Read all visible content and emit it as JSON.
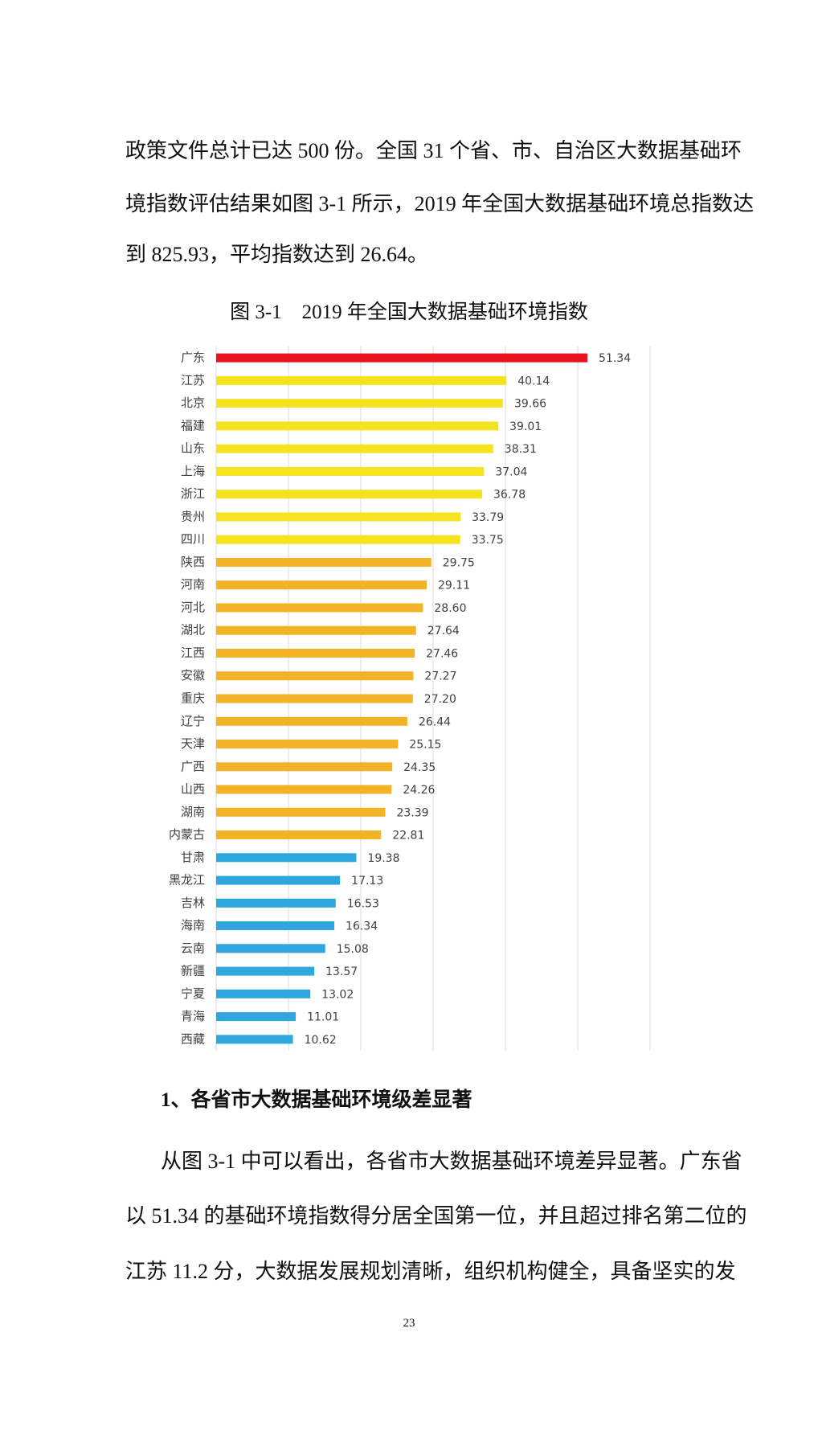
{
  "intro_lines": [
    "政策文件总计已达 500 份。全国 31 个省、市、自治区大数据基础环",
    "境指数评估结果如图 3-1 所示，2019 年全国大数据基础环境总指数达",
    "到 825.93，平均指数达到 26.64。"
  ],
  "chart_data": {
    "type": "hbar",
    "title": "图 3-1　2019 年全国大数据基础环境指数",
    "categories": [
      "广东",
      "江苏",
      "北京",
      "福建",
      "山东",
      "上海",
      "浙江",
      "贵州",
      "四川",
      "陕西",
      "河南",
      "河北",
      "湖北",
      "江西",
      "安徽",
      "重庆",
      "辽宁",
      "天津",
      "广西",
      "山西",
      "湖南",
      "内蒙古",
      "甘肃",
      "黑龙江",
      "吉林",
      "海南",
      "云南",
      "新疆",
      "宁夏",
      "青海",
      "西藏"
    ],
    "values": [
      51.34,
      40.14,
      39.66,
      39.01,
      38.31,
      37.04,
      36.78,
      33.79,
      33.75,
      29.75,
      29.11,
      28.6,
      27.64,
      27.46,
      27.27,
      27.2,
      26.44,
      25.15,
      24.35,
      24.26,
      23.39,
      22.81,
      19.38,
      17.13,
      16.53,
      16.34,
      15.08,
      13.57,
      13.02,
      11.01,
      10.62
    ],
    "value_labels": [
      "51.34",
      "40.14",
      "39.66",
      "39.01",
      "38.31",
      "37.04",
      "36.78",
      "33.79",
      "33.75",
      "29.75",
      "29.11",
      "28.60",
      "27.64",
      "27.46",
      "27.27",
      "27.20",
      "26.44",
      "25.15",
      "24.35",
      "24.26",
      "23.39",
      "22.81",
      "19.38",
      "17.13",
      "16.53",
      "16.34",
      "15.08",
      "13.57",
      "13.02",
      "11.01",
      "10.62"
    ],
    "colors": [
      "#e8141e",
      "#f3e41f",
      "#f3e41f",
      "#f3e41f",
      "#f3e41f",
      "#f3e41f",
      "#f3e41f",
      "#f3e41f",
      "#f3e41f",
      "#f2b327",
      "#f2b327",
      "#f2b327",
      "#f2b327",
      "#f2b327",
      "#f2b327",
      "#f2b327",
      "#f2b327",
      "#f2b327",
      "#f2b327",
      "#f2b327",
      "#f2b327",
      "#f2b327",
      "#2ea7de",
      "#2ea7de",
      "#2ea7de",
      "#2ea7de",
      "#2ea7de",
      "#2ea7de",
      "#2ea7de",
      "#2ea7de",
      "#2ea7de"
    ],
    "xlim": [
      0,
      60
    ],
    "xticks": [
      0,
      10,
      20,
      30,
      40,
      50,
      60
    ],
    "grid": true
  },
  "heading": "1、各省市大数据基础环境级差显著",
  "body_lines": [
    "从图 3-1 中可以看出，各省市大数据基础环境差异显著。广东省",
    "以 51.34 的基础环境指数得分居全国第一位，并且超过排名第二位的",
    "江苏 11.2 分，大数据发展规划清晰，组织机构健全，具备坚实的发"
  ],
  "page_number": "23"
}
